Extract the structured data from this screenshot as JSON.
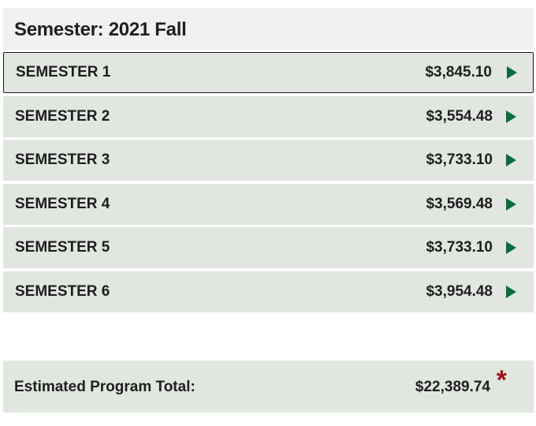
{
  "header": {
    "title": "Semester: 2021 Fall"
  },
  "semesters": [
    {
      "label": "SEMESTER 1",
      "amount": "$3,845.10",
      "icon": "arrow-right-icon"
    },
    {
      "label": "SEMESTER 2",
      "amount": "$3,554.48",
      "icon": "arrow-right-icon"
    },
    {
      "label": "SEMESTER 3",
      "amount": "$3,733.10",
      "icon": "arrow-right-icon"
    },
    {
      "label": "SEMESTER 4",
      "amount": "$3,569.48",
      "icon": "arrow-right-icon"
    },
    {
      "label": "SEMESTER 5",
      "amount": "$3,733.10",
      "icon": "arrow-right-icon"
    },
    {
      "label": "SEMESTER 6",
      "amount": "$3,954.48",
      "icon": "arrow-right-icon"
    }
  ],
  "total": {
    "label": "Estimated Program Total:",
    "amount": "$22,389.74",
    "footnote_mark": "*"
  },
  "colors": {
    "row_background": "#e1e7e0",
    "header_background": "#f1f1f1",
    "arrow": "#0c6b3d",
    "asterisk": "#a3101a",
    "active_border": "#1a1a1a"
  }
}
